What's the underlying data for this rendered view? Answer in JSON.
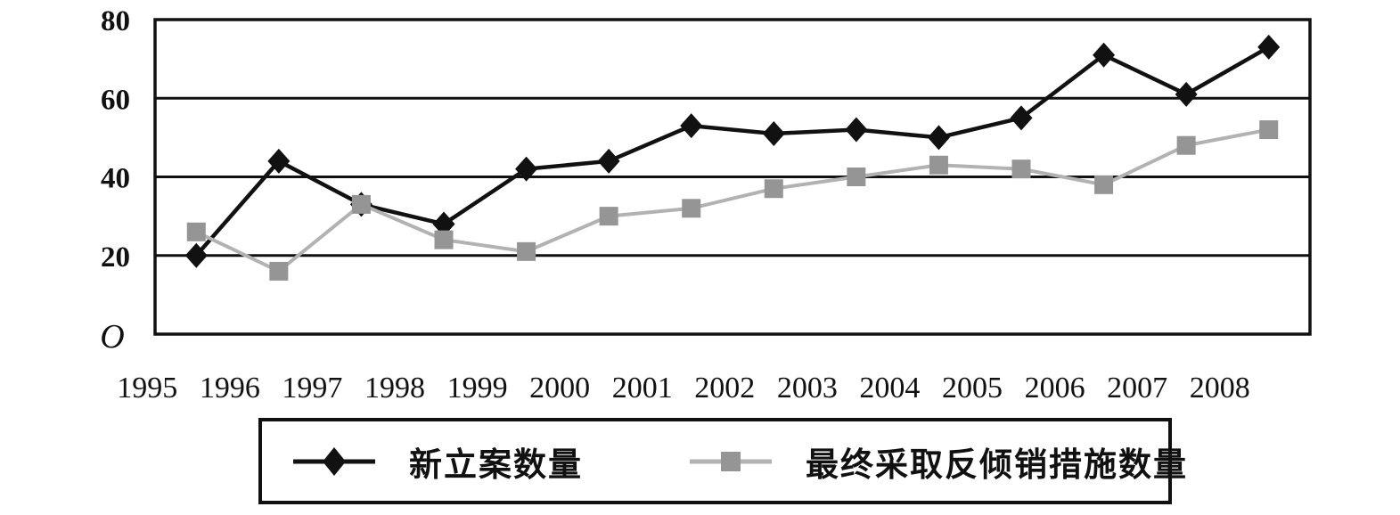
{
  "figure": {
    "background": "#ffffff",
    "ink": "#111111"
  },
  "chart_data": {
    "type": "line",
    "title": "",
    "xlabel": "",
    "ylabel": "",
    "categories": [
      "1995",
      "1996",
      "1997",
      "1998",
      "1999",
      "2000",
      "2001",
      "2002",
      "2003",
      "2004",
      "2005",
      "2006",
      "2007",
      "2008"
    ],
    "series": [
      {
        "name": "新立案数量",
        "marker": "diamond",
        "color": "#111111",
        "line_color": "#111111",
        "values": [
          20,
          44,
          33,
          28,
          42,
          44,
          53,
          51,
          52,
          50,
          55,
          71,
          61,
          73
        ]
      },
      {
        "name": "最终采取反倾销措施数量",
        "marker": "square",
        "color": "#959595",
        "line_color": "#b2b2b2",
        "values": [
          26,
          16,
          33,
          24,
          21,
          30,
          32,
          37,
          40,
          43,
          42,
          38,
          48,
          52
        ]
      }
    ],
    "ylim": [
      0,
      80
    ],
    "yticks": [
      0,
      20,
      40,
      60,
      80
    ],
    "origin_label": "O",
    "grid": "horizontal-only",
    "legend_position": "bottom-boxed"
  }
}
